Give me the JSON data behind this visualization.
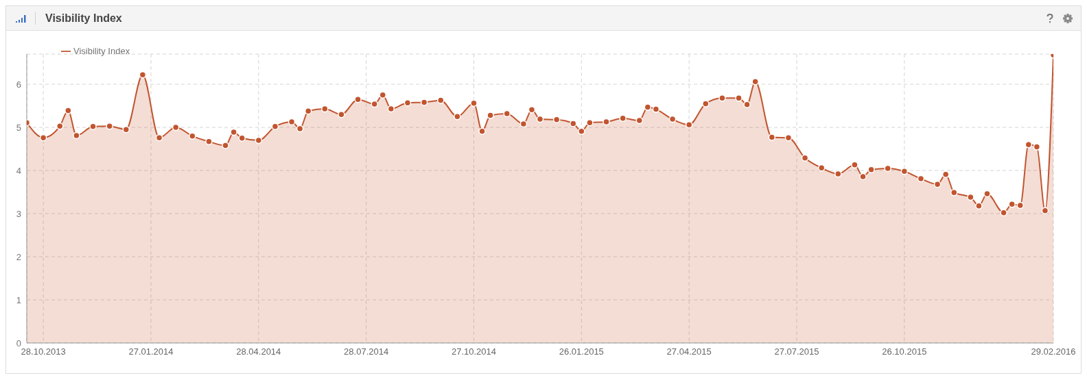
{
  "chart_data": {
    "type": "area",
    "title": "Visibility Index",
    "x": [
      "2013-10-14",
      "2013-10-28",
      "2013-11-11",
      "2013-11-18",
      "2013-11-25",
      "2013-12-09",
      "2013-12-23",
      "2014-01-06",
      "2014-01-20",
      "2014-02-03",
      "2014-02-17",
      "2014-03-03",
      "2014-03-17",
      "2014-03-31",
      "2014-04-07",
      "2014-04-14",
      "2014-04-28",
      "2014-05-12",
      "2014-05-26",
      "2014-06-02",
      "2014-06-09",
      "2014-06-23",
      "2014-07-07",
      "2014-07-21",
      "2014-08-04",
      "2014-08-11",
      "2014-08-18",
      "2014-09-01",
      "2014-09-15",
      "2014-09-29",
      "2014-10-13",
      "2014-10-27",
      "2014-11-03",
      "2014-11-10",
      "2014-11-24",
      "2014-12-08",
      "2014-12-15",
      "2014-12-22",
      "2015-01-05",
      "2015-01-19",
      "2015-01-26",
      "2015-02-02",
      "2015-02-16",
      "2015-03-02",
      "2015-03-16",
      "2015-03-23",
      "2015-03-30",
      "2015-04-13",
      "2015-04-27",
      "2015-05-11",
      "2015-05-25",
      "2015-06-08",
      "2015-06-15",
      "2015-06-22",
      "2015-07-06",
      "2015-07-20",
      "2015-08-03",
      "2015-08-17",
      "2015-08-31",
      "2015-09-14",
      "2015-09-21",
      "2015-09-28",
      "2015-10-12",
      "2015-10-26",
      "2015-11-09",
      "2015-11-23",
      "2015-11-30",
      "2015-12-07",
      "2015-12-21",
      "2015-12-28",
      "2016-01-04",
      "2016-01-18",
      "2016-01-25",
      "2016-02-01",
      "2016-02-08",
      "2016-02-15",
      "2016-02-22",
      "2016-02-29"
    ],
    "series": [
      {
        "name": "Visibility Index",
        "color": "#c1552f",
        "values": [
          5.11,
          4.76,
          5.03,
          5.39,
          4.81,
          5.02,
          5.03,
          4.95,
          6.22,
          4.76,
          5.0,
          4.8,
          4.67,
          4.58,
          4.89,
          4.75,
          4.7,
          5.02,
          5.13,
          4.97,
          5.38,
          5.43,
          5.3,
          5.65,
          5.54,
          5.75,
          5.43,
          5.57,
          5.58,
          5.63,
          5.25,
          5.56,
          4.91,
          5.28,
          5.32,
          5.08,
          5.41,
          5.19,
          5.18,
          5.09,
          4.91,
          5.11,
          5.13,
          5.21,
          5.16,
          5.47,
          5.42,
          5.19,
          5.06,
          5.55,
          5.68,
          5.68,
          5.53,
          6.06,
          4.77,
          4.76,
          4.29,
          4.06,
          3.92,
          4.13,
          3.86,
          4.02,
          4.05,
          3.98,
          3.81,
          3.68,
          3.91,
          3.49,
          3.38,
          3.18,
          3.46,
          3.02,
          3.22,
          3.19,
          4.6,
          4.55,
          3.07,
          6.68
        ]
      }
    ],
    "xlim": [
      "2013-10-14",
      "2016-02-29"
    ],
    "xticks": [
      {
        "value": "2013-10-28",
        "label": "28.10.2013"
      },
      {
        "value": "2014-01-27",
        "label": "27.01.2014"
      },
      {
        "value": "2014-04-28",
        "label": "28.04.2014"
      },
      {
        "value": "2014-07-28",
        "label": "28.07.2014"
      },
      {
        "value": "2014-10-27",
        "label": "27.10.2014"
      },
      {
        "value": "2015-01-26",
        "label": "26.01.2015"
      },
      {
        "value": "2015-04-27",
        "label": "27.04.2015"
      },
      {
        "value": "2015-07-27",
        "label": "27.07.2015"
      },
      {
        "value": "2015-10-26",
        "label": "26.10.2015"
      },
      {
        "value": "2016-02-29",
        "label": "29.02.2016"
      }
    ],
    "ylim": [
      0,
      6.7
    ],
    "yticks": [
      0,
      1,
      2,
      3,
      4,
      5,
      6
    ],
    "grid": true,
    "legend": "top left",
    "marker": "circle"
  }
}
